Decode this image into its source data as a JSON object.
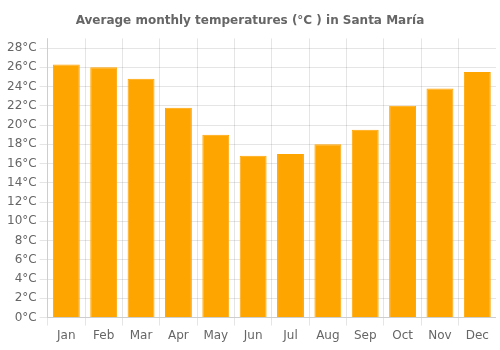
{
  "chart_data": {
    "type": "bar",
    "title": "Average monthly temperatures (°C ) in Santa María",
    "categories": [
      "Jan",
      "Feb",
      "Mar",
      "Apr",
      "May",
      "Jun",
      "Jul",
      "Aug",
      "Sep",
      "Oct",
      "Nov",
      "Dec"
    ],
    "values": [
      26.3,
      26.0,
      24.8,
      21.8,
      19.0,
      16.8,
      17.0,
      18.0,
      19.5,
      22.0,
      23.8,
      25.5
    ],
    "color": "#FFA500",
    "ylim": [
      0,
      29
    ],
    "yticks": [
      {
        "value": 0,
        "label": "0°C"
      },
      {
        "value": 2,
        "label": "2°C"
      },
      {
        "value": 4,
        "label": "4°C"
      },
      {
        "value": 6,
        "label": "6°C"
      },
      {
        "value": 8,
        "label": "8°C"
      },
      {
        "value": 10,
        "label": "10°C"
      },
      {
        "value": 12,
        "label": "12°C"
      },
      {
        "value": 14,
        "label": "14°C"
      },
      {
        "value": 16,
        "label": "16°C"
      },
      {
        "value": 18,
        "label": "18°C"
      },
      {
        "value": 20,
        "label": "20°C"
      },
      {
        "value": 22,
        "label": "22°C"
      },
      {
        "value": 24,
        "label": "24°C"
      },
      {
        "value": 26,
        "label": "26°C"
      },
      {
        "value": 28,
        "label": "28°C"
      }
    ],
    "grid": true
  }
}
